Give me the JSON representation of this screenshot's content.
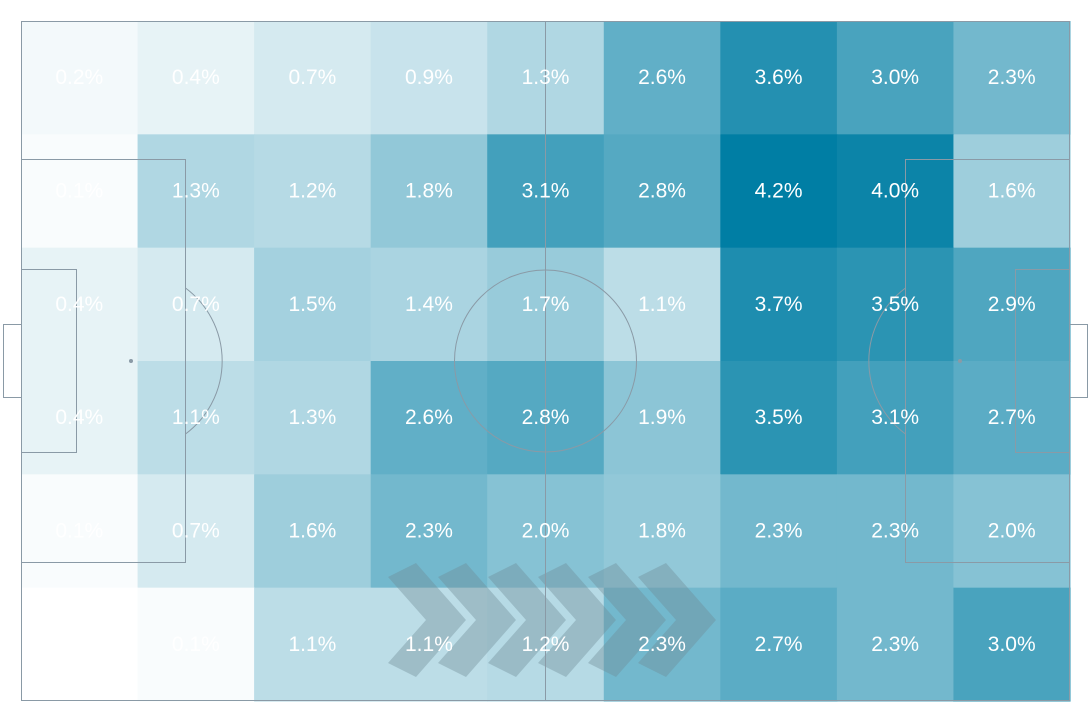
{
  "chart_data": {
    "type": "heatmap",
    "title": "",
    "xlabel": "",
    "ylabel": "",
    "value_format": "percent",
    "color_low": "#ffffff",
    "color_high": "#007ea4",
    "value_range": [
      0,
      4.2
    ],
    "columns": 9,
    "rows": 6,
    "values": [
      [
        0.2,
        0.4,
        0.7,
        0.9,
        1.3,
        2.6,
        3.6,
        3.0,
        2.3
      ],
      [
        0.1,
        1.3,
        1.2,
        1.8,
        3.1,
        2.8,
        4.2,
        4.0,
        1.6
      ],
      [
        0.4,
        0.7,
        1.5,
        1.4,
        1.7,
        1.1,
        3.7,
        3.5,
        2.9
      ],
      [
        0.4,
        1.1,
        1.3,
        2.6,
        2.8,
        1.9,
        3.5,
        3.1,
        2.7
      ],
      [
        0.1,
        0.7,
        1.6,
        2.3,
        2.0,
        1.8,
        2.3,
        2.3,
        2.0
      ],
      [
        0.0,
        0.1,
        1.1,
        1.1,
        1.2,
        2.3,
        2.7,
        2.3,
        3.0
      ]
    ],
    "labels": [
      [
        "0.2%",
        "0.4%",
        "0.7%",
        "0.9%",
        "1.3%",
        "2.6%",
        "3.6%",
        "3.0%",
        "2.3%"
      ],
      [
        "0.1%",
        "1.3%",
        "1.2%",
        "1.8%",
        "3.1%",
        "2.8%",
        "4.2%",
        "4.0%",
        "1.6%"
      ],
      [
        "0.4%",
        "0.7%",
        "1.5%",
        "1.4%",
        "1.7%",
        "1.1%",
        "3.7%",
        "3.5%",
        "2.9%"
      ],
      [
        "0.4%",
        "1.1%",
        "1.3%",
        "2.6%",
        "2.8%",
        "1.9%",
        "3.5%",
        "3.1%",
        "2.7%"
      ],
      [
        "0.1%",
        "0.7%",
        "1.6%",
        "2.3%",
        "2.0%",
        "1.8%",
        "2.3%",
        "2.3%",
        "2.0%"
      ],
      [
        "",
        "0.1%",
        "1.1%",
        "1.1%",
        "1.2%",
        "2.3%",
        "2.7%",
        "2.3%",
        "3.0%"
      ]
    ],
    "background": "football-pitch",
    "direction_of_play": "left-to-right"
  },
  "colors": {
    "pitch_line": "#8a9aa6",
    "arrow": "#6e8b96",
    "label_text": "#ffffff"
  },
  "icons": {
    "direction_arrows": "chevron-right-icon"
  }
}
